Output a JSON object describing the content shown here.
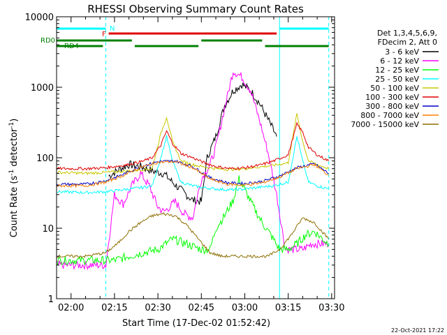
{
  "chart_data": {
    "type": "line",
    "title": "RHESSI Observing Summary Count Rates",
    "xlabel": "Start Time (17-Dec-02 01:52:42)",
    "ylabel": "Count Rate (s",
    "ylabel_sup1": "-1",
    "ylabel_mid": " detector",
    "ylabel_sup2": "-1",
    "ylabel_end": ")",
    "y_scale": "log",
    "ylim": [
      1,
      10000
    ],
    "xlim": [
      "01:55",
      "03:31"
    ],
    "x_ticks": [
      "02:00",
      "02:15",
      "02:30",
      "02:45",
      "03:00",
      "03:15",
      "03:30"
    ],
    "y_ticks": [
      "1",
      "10",
      "100",
      "1000",
      "10000"
    ],
    "legend_header": [
      "Det 1,3,4,5,6,9,",
      "FDecim 2, Att 0"
    ],
    "legend_position": "right",
    "footer": "22-Oct-2021 17:22",
    "flags": [
      {
        "name": "N",
        "color": "#00ffff",
        "segments": [
          [
            "01:55",
            "02:12"
          ],
          [
            "03:12",
            "03:29"
          ]
        ]
      },
      {
        "name": "F",
        "color": "#e00000",
        "segments": [
          [
            "02:13",
            "03:11"
          ]
        ]
      },
      {
        "name": "RD0",
        "color": "#008000",
        "segments": [
          [
            "01:55",
            "02:21"
          ],
          [
            "02:45",
            "03:06"
          ]
        ]
      },
      {
        "name": "RD4",
        "color": "#008000",
        "segments": [
          [
            "01:55",
            "02:11"
          ],
          [
            "02:22",
            "02:44"
          ],
          [
            "03:07",
            "03:29"
          ]
        ]
      }
    ],
    "night_boundaries": [
      "01:55",
      "03:12"
    ],
    "night_ends": [
      "02:12",
      "03:29"
    ],
    "series": [
      {
        "name": "3 - 6 keV",
        "color": "#000000",
        "x": [
          "01:55",
          "02:08",
          "02:13",
          "02:17",
          "02:20",
          "02:24",
          "02:28",
          "02:32",
          "02:35",
          "02:39",
          "02:42",
          "02:45",
          "02:47",
          "02:50",
          "02:53",
          "02:56",
          "02:59",
          "03:02",
          "03:05",
          "03:08",
          "03:11"
        ],
        "values": [
          null,
          null,
          55,
          70,
          80,
          75,
          65,
          60,
          45,
          32,
          25,
          24,
          100,
          200,
          550,
          900,
          1100,
          900,
          600,
          350,
          200
        ]
      },
      {
        "name": "6 - 12 keV",
        "color": "#ff00ff",
        "x": [
          "01:55",
          "02:00",
          "02:05",
          "02:10",
          "02:12",
          "02:15",
          "02:18",
          "02:21",
          "02:24",
          "02:27",
          "02:30",
          "02:32",
          "02:34",
          "02:36",
          "02:39",
          "02:42",
          "02:45",
          "02:48",
          "02:50",
          "02:53",
          "02:56",
          "02:59",
          "03:02",
          "03:05",
          "03:08",
          "03:11",
          "03:14",
          "03:17",
          "03:20",
          "03:23",
          "03:26",
          "03:29"
        ],
        "values": [
          3,
          3,
          3,
          3,
          3,
          30,
          22,
          40,
          60,
          40,
          20,
          17,
          20,
          24,
          16,
          14,
          50,
          80,
          140,
          500,
          1700,
          1400,
          900,
          350,
          120,
          30,
          5,
          5,
          5,
          6,
          6,
          6
        ]
      },
      {
        "name": "12 - 25 keV",
        "color": "#00ff00",
        "x": [
          "01:55",
          "02:05",
          "02:12",
          "02:15",
          "02:20",
          "02:25",
          "02:30",
          "02:35",
          "02:40",
          "02:45",
          "02:48",
          "02:50",
          "02:53",
          "02:56",
          "02:58",
          "03:00",
          "03:03",
          "03:06",
          "03:09",
          "03:12",
          "03:15",
          "03:18",
          "03:21",
          "03:24",
          "03:27",
          "03:29"
        ],
        "values": [
          3.5,
          3.5,
          3.5,
          3.5,
          4,
          4.5,
          5,
          7,
          6,
          5,
          5,
          10,
          15,
          25,
          50,
          35,
          20,
          12,
          8,
          5,
          5,
          6,
          8,
          9,
          7,
          6
        ]
      },
      {
        "name": "25 - 50 keV",
        "color": "#00ffff",
        "x": [
          "01:55",
          "02:05",
          "02:12",
          "02:15",
          "02:20",
          "02:25",
          "02:28",
          "02:31",
          "02:33",
          "02:35",
          "02:38",
          "02:42",
          "02:45",
          "02:50",
          "02:55",
          "03:00",
          "03:05",
          "03:10",
          "03:15",
          "03:18",
          "03:20",
          "03:22",
          "03:25",
          "03:29"
        ],
        "values": [
          33,
          32,
          33,
          34,
          36,
          38,
          40,
          100,
          200,
          90,
          45,
          40,
          38,
          36,
          35,
          36,
          38,
          40,
          45,
          200,
          90,
          45,
          40,
          36
        ]
      },
      {
        "name": "50 - 100 keV",
        "color": "#c8c800",
        "x": [
          "01:55",
          "02:05",
          "02:12",
          "02:15",
          "02:20",
          "02:25",
          "02:28",
          "02:31",
          "02:33",
          "02:35",
          "02:38",
          "02:42",
          "02:45",
          "02:50",
          "02:55",
          "03:00",
          "03:05",
          "03:10",
          "03:15",
          "03:18",
          "03:20",
          "03:22",
          "03:25",
          "03:29"
        ],
        "values": [
          62,
          60,
          62,
          63,
          65,
          68,
          70,
          220,
          380,
          170,
          90,
          80,
          75,
          70,
          68,
          70,
          74,
          78,
          85,
          420,
          170,
          90,
          80,
          70
        ]
      },
      {
        "name": "100 - 300 keV",
        "color": "#e00000",
        "x": [
          "01:55",
          "02:05",
          "02:12",
          "02:15",
          "02:20",
          "02:25",
          "02:28",
          "02:31",
          "02:33",
          "02:35",
          "02:38",
          "02:42",
          "02:46",
          "02:50",
          "02:55",
          "03:00",
          "03:05",
          "03:10",
          "03:15",
          "03:18",
          "03:20",
          "03:22",
          "03:25",
          "03:29"
        ],
        "values": [
          70,
          70,
          72,
          75,
          80,
          90,
          100,
          150,
          240,
          160,
          115,
          100,
          85,
          75,
          70,
          72,
          78,
          90,
          110,
          300,
          230,
          140,
          110,
          90
        ]
      },
      {
        "name": "300 - 800 keV",
        "color": "#0000c8",
        "x": [
          "01:55",
          "02:05",
          "02:12",
          "02:18",
          "02:24",
          "02:30",
          "02:36",
          "02:42",
          "02:48",
          "02:54",
          "03:00",
          "03:06",
          "03:12",
          "03:18",
          "03:24",
          "03:29"
        ],
        "values": [
          42,
          42,
          47,
          58,
          75,
          88,
          90,
          75,
          52,
          44,
          43,
          46,
          55,
          72,
          82,
          60
        ]
      },
      {
        "name": "800 - 7000 keV",
        "color": "#ff8000",
        "x": [
          "01:55",
          "02:05",
          "02:12",
          "02:18",
          "02:24",
          "02:30",
          "02:36",
          "02:42",
          "02:48",
          "02:54",
          "03:00",
          "03:06",
          "03:12",
          "03:18",
          "03:24",
          "03:29"
        ],
        "values": [
          40,
          40,
          45,
          56,
          73,
          86,
          88,
          72,
          50,
          42,
          41,
          44,
          53,
          70,
          80,
          56
        ]
      },
      {
        "name": "7000 - 15000 keV",
        "color": "#8c6e00",
        "x": [
          "01:55",
          "02:05",
          "02:12",
          "02:16",
          "02:20",
          "02:24",
          "02:28",
          "02:32",
          "02:36",
          "02:40",
          "02:44",
          "02:48",
          "02:52",
          "02:56",
          "03:00",
          "03:04",
          "03:08",
          "03:12",
          "03:16",
          "03:20",
          "03:24",
          "03:29"
        ],
        "values": [
          4,
          4,
          4.5,
          6,
          9,
          12,
          15,
          16,
          15,
          11,
          7,
          4.5,
          4,
          4,
          4,
          4,
          4,
          5,
          8,
          14,
          12,
          7
        ]
      }
    ]
  }
}
